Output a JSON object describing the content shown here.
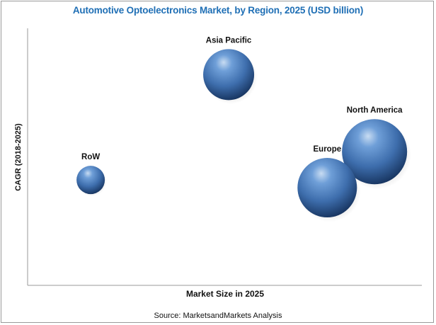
{
  "colors": {
    "title": "#1f6fb5",
    "bubble_light": "#c8dcf2",
    "bubble_mid": "#4a7dbd",
    "bubble_dark": "#14305a",
    "axis": "#9a9a9a",
    "text": "#111111"
  },
  "chart_data": {
    "type": "scatter",
    "title": "Automotive Optoelectronics Market, by Region, 2025 (USD billion)",
    "xlabel": "Market Size in 2025",
    "ylabel": "CAGR (2018-2025)",
    "source": "Source: MarketsandMarkets Analysis",
    "grid": false,
    "legend": "none",
    "xlim": [
      0,
      100
    ],
    "ylim": [
      0,
      100
    ],
    "points": [
      {
        "label": "Asia Pacific",
        "x": 51,
        "y": 82,
        "size": 36
      },
      {
        "label": "North America",
        "x": 88,
        "y": 52,
        "size": 46
      },
      {
        "label": "Europe",
        "x": 76,
        "y": 38,
        "size": 42
      },
      {
        "label": "RoW",
        "x": 16,
        "y": 41,
        "size": 20
      }
    ]
  }
}
